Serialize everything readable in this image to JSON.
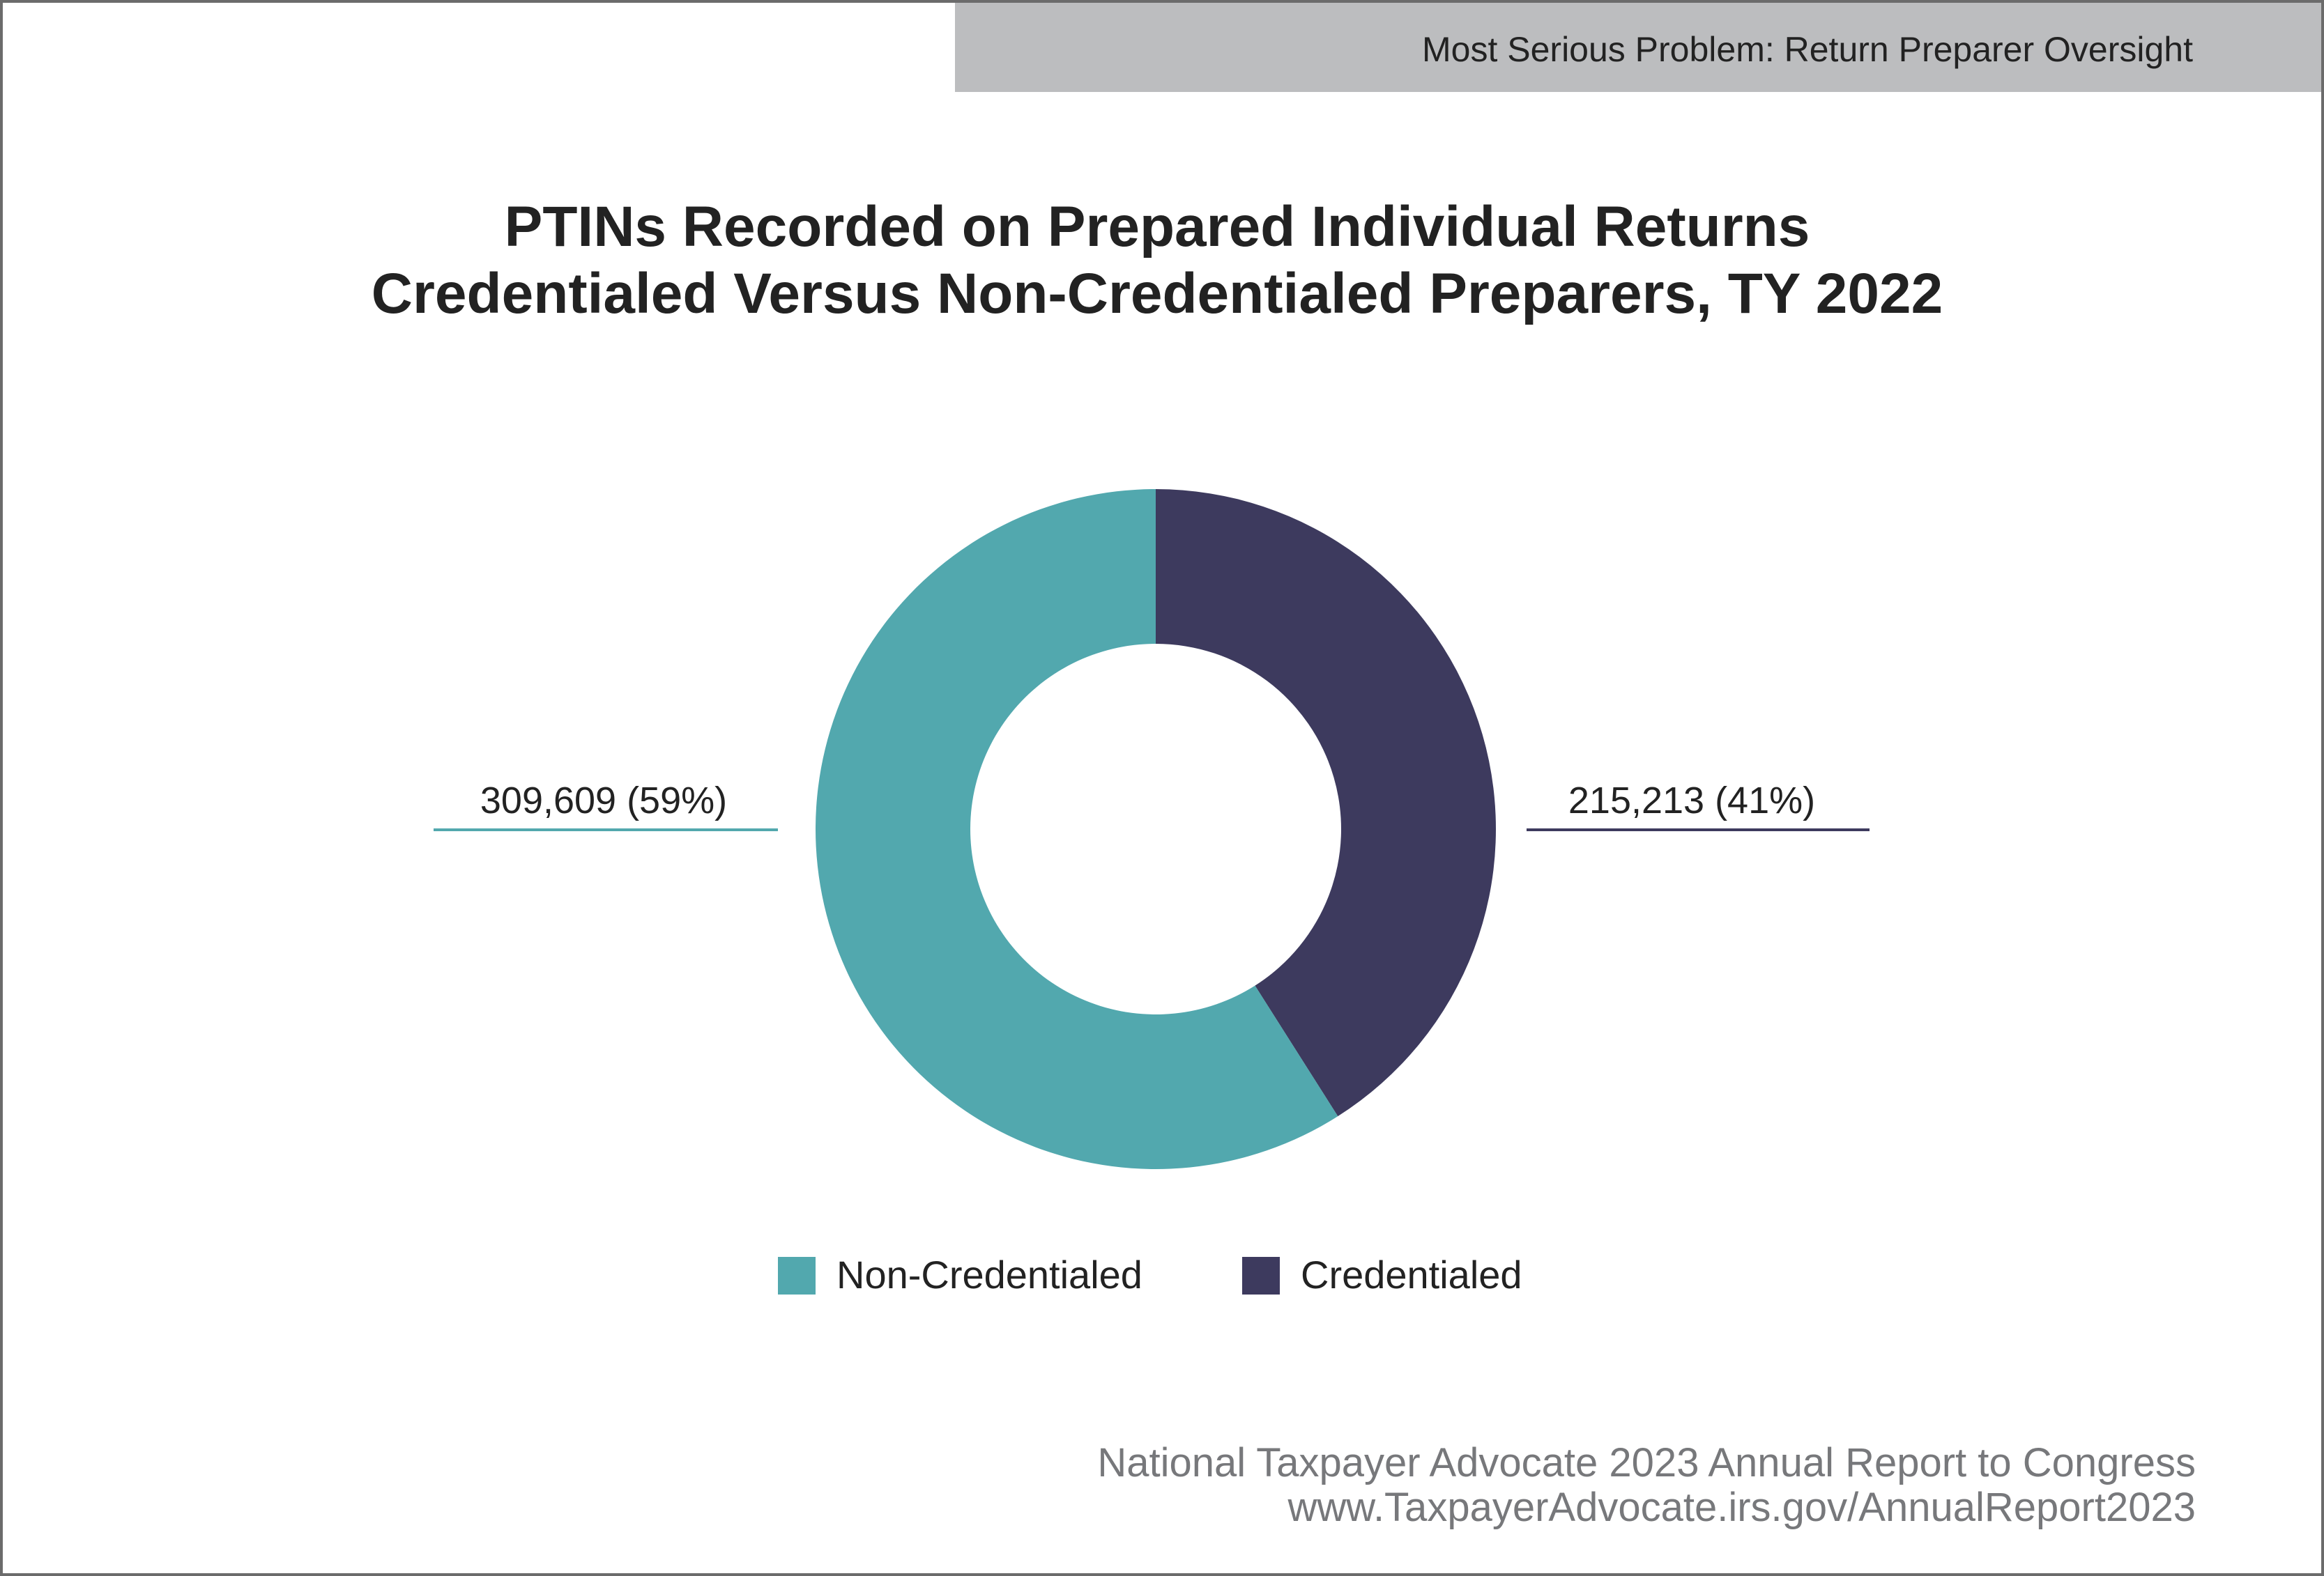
{
  "header": {
    "banner_text": "Most Serious Problem: Return Preparer Oversight"
  },
  "chart_data": {
    "type": "pie",
    "variant": "donut",
    "title_lines": [
      "PTINs Recorded on Prepared Individual Returns",
      "Credentialed Versus Non-Credentialed Preparers, TY 2022"
    ],
    "slices": [
      {
        "name": "Credentialed",
        "value": 215213,
        "percent": 41,
        "label": "215,213 (41%)",
        "color": "#3d3a5e"
      },
      {
        "name": "Non-Credentialed",
        "value": 309609,
        "percent": 59,
        "label": "309,609 (59%)",
        "color": "#52a8ae"
      }
    ],
    "legend": [
      {
        "label": "Non-Credentialed",
        "color": "#52a8ae"
      },
      {
        "label": "Credentialed",
        "color": "#3d3a5e"
      }
    ],
    "legend_position": "bottom-center"
  },
  "footer": {
    "line1": "National Taxpayer Advocate 2023 Annual Report to Congress",
    "line2": "www.TaxpayerAdvocate.irs.gov/AnnualReport2023"
  }
}
